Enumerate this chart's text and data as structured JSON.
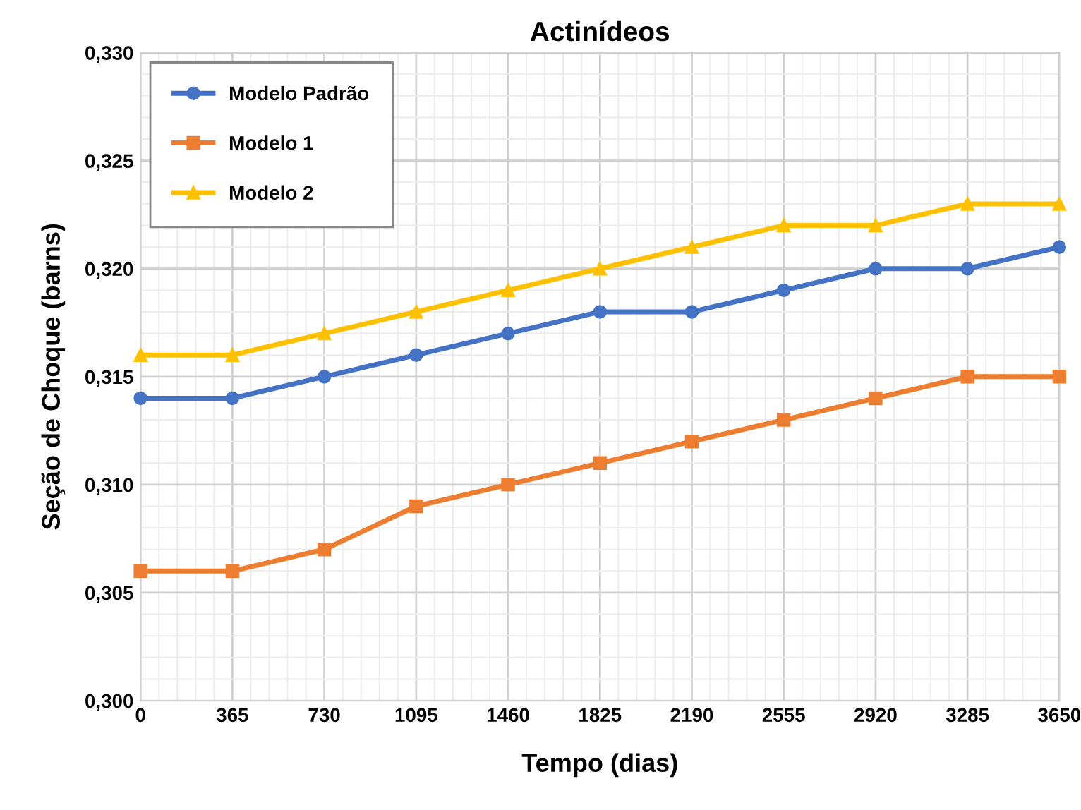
{
  "chart_data": {
    "type": "line",
    "title": "Actinídeos",
    "xlabel": "Tempo (dias)",
    "ylabel": "Seção de Choque (barns)",
    "x": [
      0,
      365,
      730,
      1095,
      1460,
      1825,
      2190,
      2555,
      2920,
      3285,
      3650
    ],
    "series": [
      {
        "name": "Modelo Padrão",
        "color": "#4472c4",
        "marker": "circle",
        "values": [
          0.314,
          0.314,
          0.315,
          0.316,
          0.317,
          0.318,
          0.318,
          0.319,
          0.32,
          0.32,
          0.321
        ]
      },
      {
        "name": "Modelo 1",
        "color": "#ed7d31",
        "marker": "square",
        "values": [
          0.306,
          0.306,
          0.307,
          0.309,
          0.31,
          0.311,
          0.312,
          0.313,
          0.314,
          0.315,
          0.315
        ]
      },
      {
        "name": "Modelo 2",
        "color": "#ffc000",
        "marker": "triangle",
        "values": [
          0.316,
          0.316,
          0.317,
          0.318,
          0.319,
          0.32,
          0.321,
          0.322,
          0.322,
          0.323,
          0.323
        ]
      }
    ],
    "xlim": [
      0,
      3650
    ],
    "xticks": [
      0,
      365,
      730,
      1095,
      1460,
      1825,
      2190,
      2555,
      2920,
      3285,
      3650
    ],
    "ylim": [
      0.3,
      0.33
    ],
    "yticks": [
      {
        "value": 0.3,
        "label": "0,300"
      },
      {
        "value": 0.305,
        "label": "0,305"
      },
      {
        "value": 0.31,
        "label": "0,310"
      },
      {
        "value": 0.315,
        "label": "0,315"
      },
      {
        "value": 0.32,
        "label": "0,320"
      },
      {
        "value": 0.325,
        "label": "0,325"
      },
      {
        "value": 0.33,
        "label": "0,330"
      }
    ],
    "grid": true,
    "legend": "top left",
    "line_style": "solid"
  }
}
